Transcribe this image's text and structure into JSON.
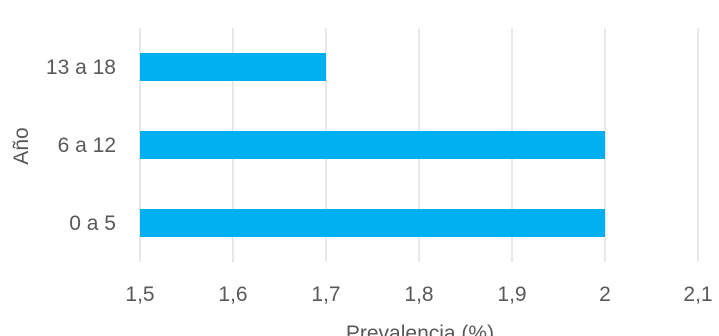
{
  "chart_data": {
    "type": "bar",
    "orientation": "horizontal",
    "categories": [
      "0 a 5",
      "6 a 12",
      "13 a 18"
    ],
    "values": [
      2.0,
      2.0,
      1.7
    ],
    "xlabel": "Prevalencia (%)",
    "ylabel": "Año",
    "xlim": [
      1.5,
      2.1
    ],
    "xticks": [
      "1,5",
      "1,6",
      "1,7",
      "1,8",
      "1,9",
      "2",
      "2,1"
    ],
    "grid": "vertical",
    "legend": "none",
    "bar_color": "#00b0f0"
  }
}
